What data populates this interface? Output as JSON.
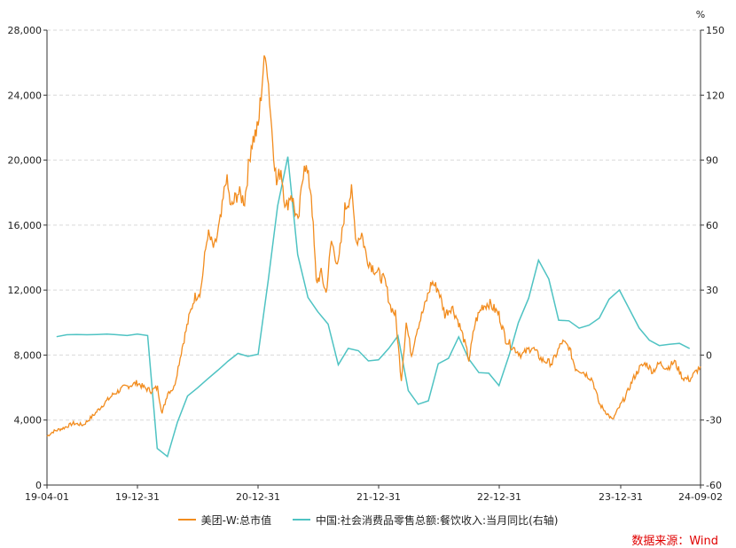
{
  "source_label": "数据来源：Wind",
  "legend": {
    "series_left": "美团-W:总市值",
    "series_right": "中国:社会消费品零售总额:餐饮收入:当月同比(右轴)"
  },
  "colors": {
    "left_series": "#f28c1e",
    "right_series": "#4fc3c3",
    "axis": "#333333",
    "grid": "#d9d9d9"
  },
  "chart_data": {
    "type": "line",
    "x_tick_labels": [
      "19-04-01",
      "19-12-31",
      "20-12-31",
      "21-12-31",
      "22-12-31",
      "23-12-31",
      "24-09-02"
    ],
    "y_left": {
      "ticks": [
        "0",
        "4,000",
        "8,000",
        "12,000",
        "16,000",
        "20,000",
        "24,000",
        "28,000"
      ],
      "range": [
        0,
        28000
      ]
    },
    "y_right": {
      "unit": "%",
      "ticks": [
        "-60",
        "-30",
        "0",
        "30",
        "60",
        "90",
        "120",
        "150"
      ],
      "range": [
        -60,
        150
      ]
    },
    "grid": true,
    "series": [
      {
        "name": "美团-W:总市值",
        "axis": "left",
        "points": [
          [
            "2019-04-01",
            3000
          ],
          [
            "2019-04-20",
            3300
          ],
          [
            "2019-05-20",
            3500
          ],
          [
            "2019-06-20",
            3800
          ],
          [
            "2019-07-20",
            3700
          ],
          [
            "2019-08-20",
            4300
          ],
          [
            "2019-09-20",
            5000
          ],
          [
            "2019-10-20",
            5600
          ],
          [
            "2019-11-20",
            6000
          ],
          [
            "2019-12-31",
            6300
          ],
          [
            "2020-01-20",
            6000
          ],
          [
            "2020-02-10",
            5800
          ],
          [
            "2020-03-01",
            6000
          ],
          [
            "2020-03-15",
            4400
          ],
          [
            "2020-04-01",
            5700
          ],
          [
            "2020-04-20",
            6000
          ],
          [
            "2020-05-15",
            8500
          ],
          [
            "2020-06-01",
            10000
          ],
          [
            "2020-06-20",
            11500
          ],
          [
            "2020-07-10",
            12000
          ],
          [
            "2020-07-31",
            15500
          ],
          [
            "2020-08-20",
            14500
          ],
          [
            "2020-09-10",
            16500
          ],
          [
            "2020-09-25",
            19000
          ],
          [
            "2020-10-10",
            17000
          ],
          [
            "2020-10-30",
            18000
          ],
          [
            "2020-11-20",
            17500
          ],
          [
            "2020-12-10",
            21000
          ],
          [
            "2020-12-31",
            22000
          ],
          [
            "2021-01-15",
            25500
          ],
          [
            "2021-01-25",
            26500
          ],
          [
            "2021-02-10",
            22000
          ],
          [
            "2021-02-25",
            18500
          ],
          [
            "2021-03-10",
            19500
          ],
          [
            "2021-03-25",
            17000
          ],
          [
            "2021-04-10",
            18000
          ],
          [
            "2021-05-01",
            16000
          ],
          [
            "2021-05-20",
            20000
          ],
          [
            "2021-06-10",
            18000
          ],
          [
            "2021-06-25",
            12500
          ],
          [
            "2021-07-10",
            13000
          ],
          [
            "2021-07-25",
            11800
          ],
          [
            "2021-08-10",
            15000
          ],
          [
            "2021-08-31",
            13500
          ],
          [
            "2021-09-20",
            17000
          ],
          [
            "2021-10-10",
            18000
          ],
          [
            "2021-10-25",
            15000
          ],
          [
            "2021-11-10",
            15500
          ],
          [
            "2021-11-25",
            14000
          ],
          [
            "2021-12-10",
            13500
          ],
          [
            "2021-12-31",
            13000
          ],
          [
            "2022-01-20",
            12500
          ],
          [
            "2022-02-05",
            11000
          ],
          [
            "2022-02-20",
            10500
          ],
          [
            "2022-03-10",
            6500
          ],
          [
            "2022-03-25",
            10000
          ],
          [
            "2022-04-10",
            8000
          ],
          [
            "2022-04-25",
            9500
          ],
          [
            "2022-05-20",
            11000
          ],
          [
            "2022-06-10",
            12500
          ],
          [
            "2022-07-01",
            12000
          ],
          [
            "2022-07-20",
            10500
          ],
          [
            "2022-08-10",
            11000
          ],
          [
            "2022-08-31",
            10000
          ],
          [
            "2022-09-15",
            9000
          ],
          [
            "2022-10-01",
            7700
          ],
          [
            "2022-10-20",
            10000
          ],
          [
            "2022-11-10",
            11000
          ],
          [
            "2022-12-01",
            11200
          ],
          [
            "2022-12-31",
            10500
          ],
          [
            "2023-01-20",
            9000
          ],
          [
            "2023-02-10",
            8500
          ],
          [
            "2023-03-10",
            8000
          ],
          [
            "2023-04-10",
            8500
          ],
          [
            "2023-05-10",
            7700
          ],
          [
            "2023-06-10",
            7500
          ],
          [
            "2023-07-10",
            8800
          ],
          [
            "2023-07-31",
            8500
          ],
          [
            "2023-08-20",
            7200
          ],
          [
            "2023-09-10",
            7000
          ],
          [
            "2023-10-10",
            6500
          ],
          [
            "2023-10-31",
            5000
          ],
          [
            "2023-11-20",
            4500
          ],
          [
            "2023-12-10",
            4000
          ],
          [
            "2023-12-31",
            4800
          ],
          [
            "2024-01-20",
            5500
          ],
          [
            "2024-02-10",
            6500
          ],
          [
            "2024-03-01",
            7200
          ],
          [
            "2024-03-20",
            7500
          ],
          [
            "2024-04-10",
            7000
          ],
          [
            "2024-05-01",
            7500
          ],
          [
            "2024-05-25",
            7200
          ],
          [
            "2024-06-15",
            7600
          ],
          [
            "2024-07-10",
            6600
          ],
          [
            "2024-08-01",
            6500
          ],
          [
            "2024-08-20",
            7000
          ],
          [
            "2024-09-02",
            7300
          ]
        ]
      },
      {
        "name": "中国:社会消费品零售总额:餐饮收入:当月同比(右轴)",
        "axis": "right",
        "points": [
          [
            "2019-04-30",
            8.5
          ],
          [
            "2019-05-31",
            9.4
          ],
          [
            "2019-06-30",
            9.5
          ],
          [
            "2019-07-31",
            9.4
          ],
          [
            "2019-08-31",
            9.5
          ],
          [
            "2019-09-30",
            9.7
          ],
          [
            "2019-10-31",
            9.4
          ],
          [
            "2019-11-30",
            9.0
          ],
          [
            "2019-12-31",
            9.7
          ],
          [
            "2020-01-31",
            9.0
          ],
          [
            "2020-02-29",
            -43.1
          ],
          [
            "2020-03-31",
            -46.8
          ],
          [
            "2020-04-30",
            -31.1
          ],
          [
            "2020-05-31",
            -18.9
          ],
          [
            "2020-06-30",
            -15.2
          ],
          [
            "2020-07-31",
            -11.0
          ],
          [
            "2020-08-31",
            -7.0
          ],
          [
            "2020-09-30",
            -2.9
          ],
          [
            "2020-10-31",
            0.8
          ],
          [
            "2020-11-30",
            -0.6
          ],
          [
            "2020-12-31",
            0.4
          ],
          [
            "2021-01-31",
            34.8
          ],
          [
            "2021-02-28",
            68.9
          ],
          [
            "2021-03-31",
            91.6
          ],
          [
            "2021-04-30",
            46.4
          ],
          [
            "2021-05-31",
            26.6
          ],
          [
            "2021-06-30",
            20.0
          ],
          [
            "2021-07-31",
            14.3
          ],
          [
            "2021-08-31",
            -4.5
          ],
          [
            "2021-09-30",
            3.1
          ],
          [
            "2021-10-31",
            2.0
          ],
          [
            "2021-11-30",
            -2.7
          ],
          [
            "2021-12-31",
            -2.2
          ],
          [
            "2022-01-31",
            3.1
          ],
          [
            "2022-02-28",
            8.9
          ],
          [
            "2022-03-31",
            -16.4
          ],
          [
            "2022-04-30",
            -22.7
          ],
          [
            "2022-05-31",
            -21.1
          ],
          [
            "2022-06-30",
            -4.0
          ],
          [
            "2022-07-31",
            -1.5
          ],
          [
            "2022-08-31",
            8.4
          ],
          [
            "2022-09-30",
            -1.7
          ],
          [
            "2022-10-31",
            -8.1
          ],
          [
            "2022-11-30",
            -8.4
          ],
          [
            "2022-12-31",
            -14.1
          ],
          [
            "2023-01-31",
            0.0
          ],
          [
            "2023-02-28",
            15.0
          ],
          [
            "2023-03-31",
            26.3
          ],
          [
            "2023-04-30",
            43.8
          ],
          [
            "2023-05-31",
            35.1
          ],
          [
            "2023-06-30",
            16.1
          ],
          [
            "2023-07-31",
            15.8
          ],
          [
            "2023-08-31",
            12.4
          ],
          [
            "2023-09-30",
            13.8
          ],
          [
            "2023-10-31",
            17.1
          ],
          [
            "2023-11-30",
            25.8
          ],
          [
            "2023-12-31",
            30.0
          ],
          [
            "2024-01-31",
            21.0
          ],
          [
            "2024-02-29",
            12.5
          ],
          [
            "2024-03-31",
            6.9
          ],
          [
            "2024-04-30",
            4.4
          ],
          [
            "2024-05-31",
            5.0
          ],
          [
            "2024-06-30",
            5.4
          ],
          [
            "2024-07-31",
            3.0
          ]
        ]
      }
    ]
  }
}
